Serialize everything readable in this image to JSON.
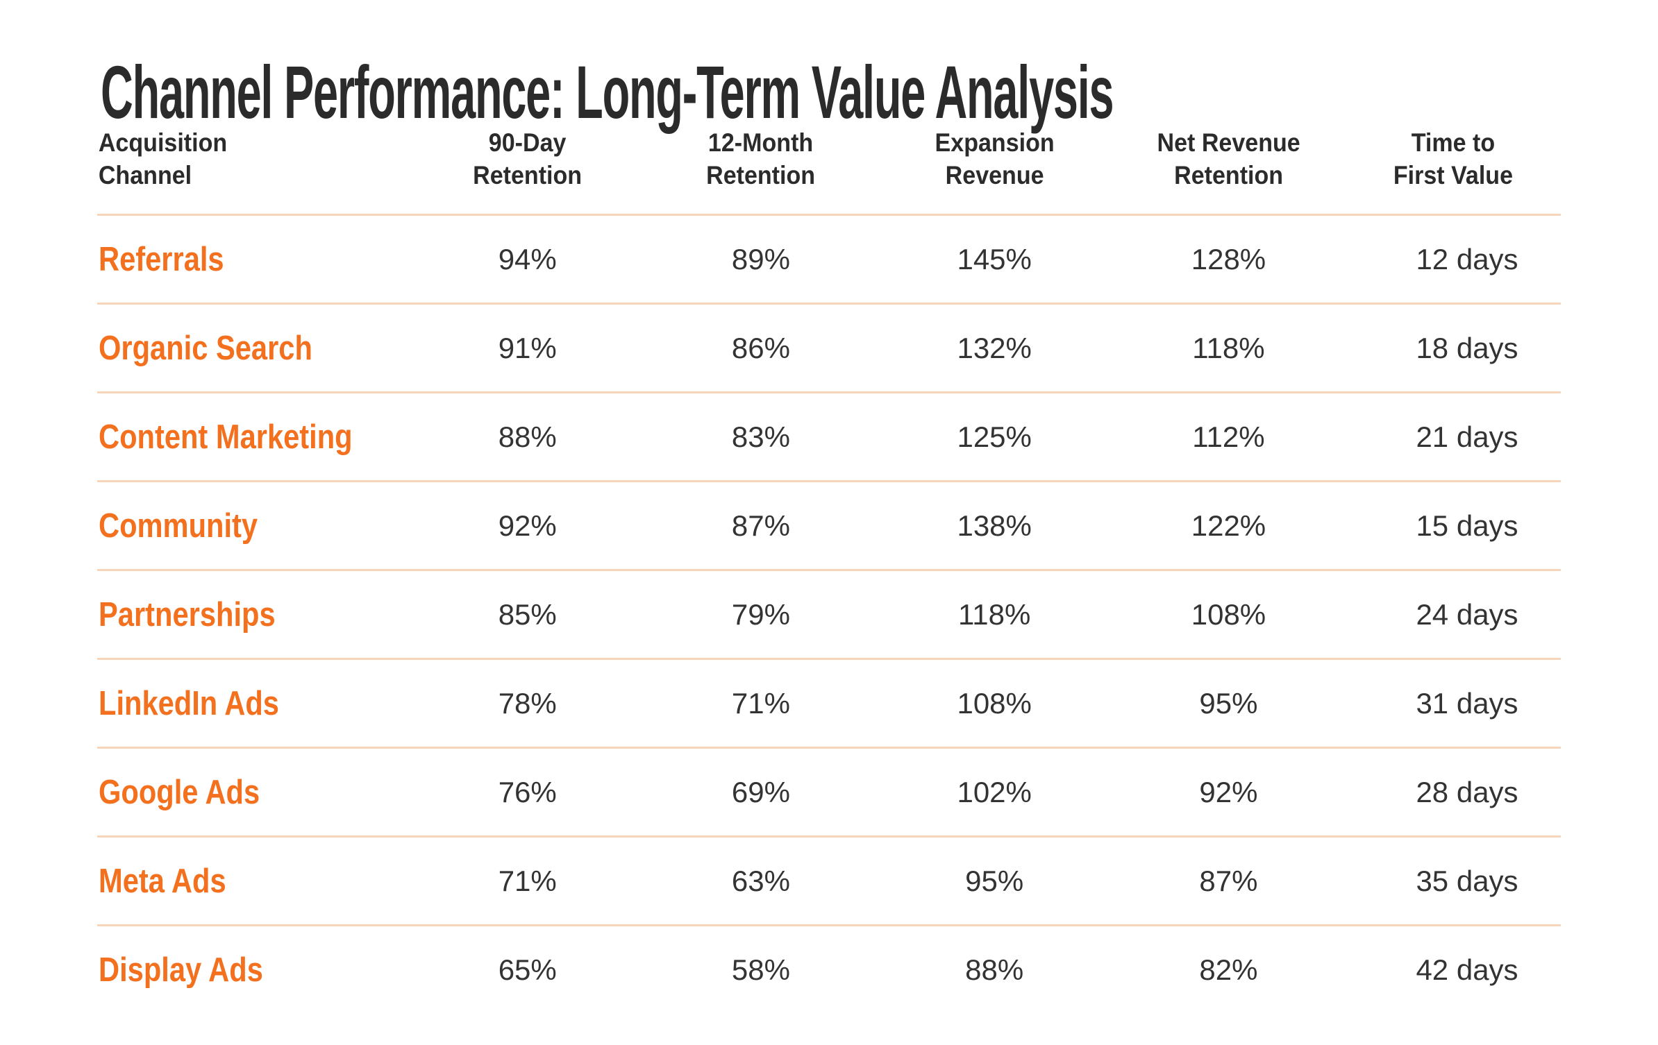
{
  "title": "Channel Performance: Long-Term Value Analysis",
  "colors": {
    "background": "#ffffff",
    "accent_orange": "#f3701f",
    "divider_peach": "#f8d5b8",
    "heading_text": "#2b2b2b",
    "value_text": "#333333"
  },
  "chart_data": {
    "type": "table",
    "title": "Channel Performance: Long-Term Value Analysis",
    "columns": [
      "Acquisition Channel",
      "90-Day Retention",
      "12-Month Retention",
      "Expansion Revenue",
      "Net Revenue Retention",
      "Time to First Value"
    ],
    "header_lines": [
      "Acquisition\nChannel",
      "90-Day\nRetention",
      "12-Month\nRetention",
      "Expansion\nRevenue",
      "Net Revenue\nRetention",
      "Time to\nFirst Value"
    ],
    "rows": [
      {
        "channel": "Referrals",
        "retention_90d": "94%",
        "retention_12m": "89%",
        "expansion_revenue": "145%",
        "net_revenue_retention": "128%",
        "time_to_first_value": "12 days"
      },
      {
        "channel": "Organic Search",
        "retention_90d": "91%",
        "retention_12m": "86%",
        "expansion_revenue": "132%",
        "net_revenue_retention": "118%",
        "time_to_first_value": "18 days"
      },
      {
        "channel": "Content Marketing",
        "retention_90d": "88%",
        "retention_12m": "83%",
        "expansion_revenue": "125%",
        "net_revenue_retention": "112%",
        "time_to_first_value": "21 days"
      },
      {
        "channel": "Community",
        "retention_90d": "92%",
        "retention_12m": "87%",
        "expansion_revenue": "138%",
        "net_revenue_retention": "122%",
        "time_to_first_value": "15 days"
      },
      {
        "channel": "Partnerships",
        "retention_90d": "85%",
        "retention_12m": "79%",
        "expansion_revenue": "118%",
        "net_revenue_retention": "108%",
        "time_to_first_value": "24 days"
      },
      {
        "channel": "LinkedIn Ads",
        "retention_90d": "78%",
        "retention_12m": "71%",
        "expansion_revenue": "108%",
        "net_revenue_retention": "95%",
        "time_to_first_value": "31 days"
      },
      {
        "channel": "Google Ads",
        "retention_90d": "76%",
        "retention_12m": "69%",
        "expansion_revenue": "102%",
        "net_revenue_retention": "92%",
        "time_to_first_value": "28 days"
      },
      {
        "channel": "Meta Ads",
        "retention_90d": "71%",
        "retention_12m": "63%",
        "expansion_revenue": "95%",
        "net_revenue_retention": "87%",
        "time_to_first_value": "35 days"
      },
      {
        "channel": "Display Ads",
        "retention_90d": "65%",
        "retention_12m": "58%",
        "expansion_revenue": "88%",
        "net_revenue_retention": "82%",
        "time_to_first_value": "42 days"
      }
    ]
  }
}
